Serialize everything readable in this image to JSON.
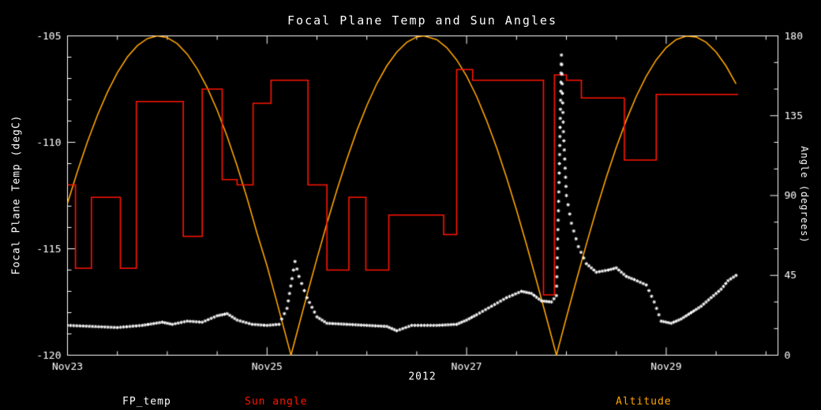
{
  "window": {
    "background": "#000000"
  },
  "chart_data": {
    "type": "line",
    "title": "Focal Plane Temp and Sun Angles",
    "xlabel": "2012",
    "grid": false,
    "legend_position": "bottom",
    "left_axis": {
      "label": "Focal Plane Temp (degC)",
      "range": [
        -120,
        -105
      ],
      "ticks": [
        -105,
        -110,
        -115,
        -120
      ],
      "minor_step": 1
    },
    "right_axis": {
      "label": "Angle (degrees)",
      "range": [
        0,
        180
      ],
      "ticks": [
        0,
        45,
        90,
        135,
        180
      ],
      "minor_step": 15
    },
    "x_axis": {
      "tick_labels": [
        "Nov23",
        "Nov25",
        "Nov27",
        "Nov29"
      ],
      "tick_days": [
        0,
        2,
        4,
        6
      ],
      "range_days": [
        0,
        7.12
      ],
      "minor_step_days": 0.5,
      "year_label": "2012"
    },
    "series": [
      {
        "name": "Altitude",
        "color": "#ffa500",
        "axis": "right",
        "style": "line",
        "points": [
          [
            0,
            85.7
          ],
          [
            0.1,
            103.7
          ],
          [
            0.2,
            120.3
          ],
          [
            0.3,
            135.2
          ],
          [
            0.4,
            148.3
          ],
          [
            0.5,
            159.3
          ],
          [
            0.6,
            168.1
          ],
          [
            0.7,
            174.5
          ],
          [
            0.8,
            178.5
          ],
          [
            0.9,
            180
          ],
          [
            1.0,
            179
          ],
          [
            1.1,
            175.6
          ],
          [
            1.2,
            169.7
          ],
          [
            1.3,
            161.4
          ],
          [
            1.4,
            150.8
          ],
          [
            1.5,
            138.1
          ],
          [
            1.6,
            123.3
          ],
          [
            1.7,
            106.7
          ],
          [
            1.8,
            88.4
          ],
          [
            1.9,
            68.7
          ],
          [
            2.0,
            50.3
          ],
          [
            2.1,
            29.6
          ],
          [
            2.2,
            8.4
          ],
          [
            2.24,
            0
          ],
          [
            2.3,
            12.8
          ],
          [
            2.4,
            33.9
          ],
          [
            2.5,
            54.5
          ],
          [
            2.6,
            74.3
          ],
          [
            2.7,
            93.1
          ],
          [
            2.8,
            110.6
          ],
          [
            2.9,
            126.6
          ],
          [
            3.0,
            140.8
          ],
          [
            3.1,
            153.1
          ],
          [
            3.2,
            163.1
          ],
          [
            3.3,
            170.9
          ],
          [
            3.4,
            176.4
          ],
          [
            3.5,
            179.4
          ],
          [
            3.57,
            180
          ],
          [
            3.7,
            177.9
          ],
          [
            3.8,
            173.4
          ],
          [
            3.9,
            166.5
          ],
          [
            4.0,
            157.3
          ],
          [
            4.1,
            145.9
          ],
          [
            4.2,
            132.3
          ],
          [
            4.3,
            117.1
          ],
          [
            4.4,
            100.1
          ],
          [
            4.5,
            81.8
          ],
          [
            4.6,
            62.3
          ],
          [
            4.7,
            42.0
          ],
          [
            4.8,
            21.1
          ],
          [
            4.9,
            0
          ],
          [
            5.0,
            21.3
          ],
          [
            5.1,
            42.2
          ],
          [
            5.2,
            62.6
          ],
          [
            5.3,
            82.0
          ],
          [
            5.4,
            100.3
          ],
          [
            5.5,
            117.2
          ],
          [
            5.6,
            132.5
          ],
          [
            5.7,
            145.9
          ],
          [
            5.8,
            157.3
          ],
          [
            5.9,
            166.5
          ],
          [
            6.0,
            173.4
          ],
          [
            6.1,
            177.9
          ],
          [
            6.2,
            179.9
          ],
          [
            6.3,
            179.4
          ],
          [
            6.4,
            176.4
          ],
          [
            6.5,
            170.9
          ],
          [
            6.6,
            163.0
          ],
          [
            6.7,
            152.9
          ]
        ]
      },
      {
        "name": "Sun angle",
        "color": "#ff1500",
        "axis": "right",
        "style": "steps",
        "points": [
          [
            0,
            96
          ],
          [
            0.08,
            49
          ],
          [
            0.24,
            89
          ],
          [
            0.53,
            49
          ],
          [
            0.69,
            143
          ],
          [
            1.16,
            67
          ],
          [
            1.35,
            150
          ],
          [
            1.55,
            99
          ],
          [
            1.7,
            96
          ],
          [
            1.86,
            142
          ],
          [
            2.04,
            155
          ],
          [
            2.41,
            96
          ],
          [
            2.6,
            48
          ],
          [
            2.82,
            89
          ],
          [
            2.99,
            48
          ],
          [
            3.22,
            79
          ],
          [
            3.5,
            79
          ],
          [
            3.77,
            68
          ],
          [
            3.9,
            161
          ],
          [
            4.06,
            155
          ],
          [
            4.77,
            34
          ],
          [
            4.88,
            158
          ],
          [
            5.0,
            155
          ],
          [
            5.15,
            145
          ],
          [
            5.58,
            110
          ],
          [
            5.9,
            147
          ],
          [
            6.72,
            147
          ]
        ]
      },
      {
        "name": "FP_temp",
        "color": "#ffffff",
        "axis": "left",
        "style": "markers",
        "points": [
          [
            0,
            -118.6
          ],
          [
            0.25,
            -118.65
          ],
          [
            0.5,
            -118.7
          ],
          [
            0.75,
            -118.6
          ],
          [
            0.95,
            -118.45
          ],
          [
            1.05,
            -118.55
          ],
          [
            1.2,
            -118.4
          ],
          [
            1.35,
            -118.45
          ],
          [
            1.5,
            -118.15
          ],
          [
            1.6,
            -118.05
          ],
          [
            1.7,
            -118.35
          ],
          [
            1.85,
            -118.55
          ],
          [
            2.0,
            -118.6
          ],
          [
            2.12,
            -118.55
          ],
          [
            2.2,
            -117.8
          ],
          [
            2.25,
            -116.4
          ],
          [
            2.28,
            -115.6
          ],
          [
            2.32,
            -116.3
          ],
          [
            2.4,
            -117.3
          ],
          [
            2.5,
            -118.2
          ],
          [
            2.6,
            -118.5
          ],
          [
            2.8,
            -118.55
          ],
          [
            3.0,
            -118.6
          ],
          [
            3.2,
            -118.65
          ],
          [
            3.3,
            -118.85
          ],
          [
            3.45,
            -118.6
          ],
          [
            3.7,
            -118.6
          ],
          [
            3.9,
            -118.55
          ],
          [
            4.0,
            -118.35
          ],
          [
            4.1,
            -118.1
          ],
          [
            4.25,
            -117.7
          ],
          [
            4.4,
            -117.3
          ],
          [
            4.55,
            -117.0
          ],
          [
            4.65,
            -117.1
          ],
          [
            4.75,
            -117.45
          ],
          [
            4.85,
            -117.5
          ],
          [
            4.9,
            -117.2
          ],
          [
            4.93,
            -111.0
          ],
          [
            4.95,
            -105.9
          ],
          [
            4.97,
            -109.5
          ],
          [
            5.0,
            -112.5
          ],
          [
            5.05,
            -113.8
          ],
          [
            5.12,
            -114.9
          ],
          [
            5.2,
            -115.7
          ],
          [
            5.3,
            -116.1
          ],
          [
            5.42,
            -116.0
          ],
          [
            5.5,
            -115.9
          ],
          [
            5.6,
            -116.3
          ],
          [
            5.68,
            -116.45
          ],
          [
            5.8,
            -116.7
          ],
          [
            5.88,
            -117.5
          ],
          [
            5.95,
            -118.4
          ],
          [
            6.05,
            -118.5
          ],
          [
            6.15,
            -118.3
          ],
          [
            6.25,
            -118.0
          ],
          [
            6.35,
            -117.7
          ],
          [
            6.45,
            -117.3
          ],
          [
            6.55,
            -116.9
          ],
          [
            6.62,
            -116.5
          ],
          [
            6.7,
            -116.25
          ]
        ]
      }
    ],
    "legend": [
      {
        "label": "FP_temp",
        "color": "#ffffff"
      },
      {
        "label": "Sun angle",
        "color": "#ff1500"
      },
      {
        "label": "Altitude",
        "color": "#ffa500"
      }
    ]
  }
}
